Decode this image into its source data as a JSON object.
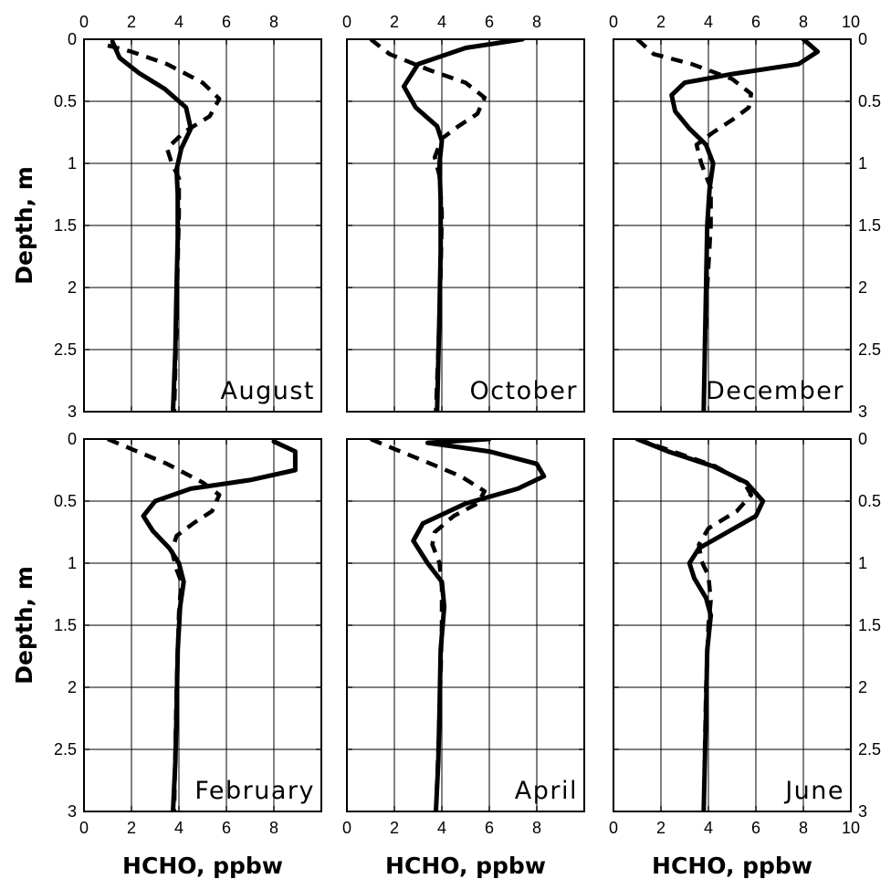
{
  "chart_data": {
    "type": "line",
    "ylabel": "Depth, m",
    "xlabel": "HCHO, ppbw",
    "ylim": [
      3,
      0
    ],
    "yticks": [
      "0",
      "0.5",
      "1",
      "1.5",
      "2",
      "2.5",
      "3"
    ],
    "grid": true,
    "panels": [
      {
        "title": "August",
        "xlim": [
          0,
          10
        ],
        "xticks": [
          "0",
          "2",
          "4",
          "6",
          "8"
        ],
        "series": [
          {
            "style": "solid",
            "points": [
              [
                1.2,
                0.02
              ],
              [
                1.5,
                0.15
              ],
              [
                2.3,
                0.27
              ],
              [
                3.4,
                0.4
              ],
              [
                4.3,
                0.55
              ],
              [
                4.5,
                0.72
              ],
              [
                4.1,
                0.88
              ],
              [
                3.9,
                1.05
              ],
              [
                3.95,
                1.25
              ],
              [
                3.95,
                1.6
              ],
              [
                3.9,
                2.0
              ],
              [
                3.85,
                2.5
              ],
              [
                3.75,
                3.0
              ]
            ]
          },
          {
            "style": "dashed",
            "points": [
              [
                1.0,
                0.05
              ],
              [
                2.0,
                0.1
              ],
              [
                3.5,
                0.2
              ],
              [
                5.0,
                0.35
              ],
              [
                5.7,
                0.48
              ],
              [
                5.3,
                0.62
              ],
              [
                4.2,
                0.75
              ],
              [
                3.5,
                0.88
              ],
              [
                3.7,
                1.0
              ],
              [
                4.0,
                1.12
              ],
              [
                4.0,
                1.4
              ],
              [
                3.95,
                1.8
              ],
              [
                3.9,
                2.3
              ],
              [
                3.8,
                3.0
              ]
            ]
          }
        ]
      },
      {
        "title": "October",
        "xlim": [
          0,
          10
        ],
        "xticks": [
          "0",
          "2",
          "4",
          "6",
          "8"
        ],
        "series": [
          {
            "style": "solid",
            "points": [
              [
                7.4,
                0.0
              ],
              [
                5.0,
                0.07
              ],
              [
                3.0,
                0.2
              ],
              [
                2.4,
                0.38
              ],
              [
                2.9,
                0.55
              ],
              [
                3.8,
                0.7
              ],
              [
                4.0,
                0.82
              ],
              [
                3.9,
                1.0
              ],
              [
                3.95,
                1.3
              ],
              [
                3.95,
                1.7
              ],
              [
                3.9,
                2.2
              ],
              [
                3.85,
                2.6
              ],
              [
                3.8,
                3.0
              ]
            ]
          },
          {
            "style": "dashed",
            "points": [
              [
                1.0,
                0.0
              ],
              [
                1.8,
                0.12
              ],
              [
                3.5,
                0.25
              ],
              [
                5.0,
                0.35
              ],
              [
                5.8,
                0.47
              ],
              [
                5.5,
                0.6
              ],
              [
                4.7,
                0.7
              ],
              [
                4.0,
                0.8
              ],
              [
                3.7,
                0.95
              ],
              [
                3.9,
                1.1
              ],
              [
                4.0,
                1.4
              ],
              [
                3.95,
                1.9
              ],
              [
                3.85,
                2.5
              ],
              [
                3.75,
                3.0
              ]
            ]
          }
        ]
      },
      {
        "title": "December",
        "xlim": [
          0,
          10
        ],
        "xticks": [
          "0",
          "2",
          "4",
          "6",
          "8",
          "10"
        ],
        "series": [
          {
            "style": "solid",
            "points": [
              [
                8.0,
                0.0
              ],
              [
                8.6,
                0.1
              ],
              [
                7.8,
                0.2
              ],
              [
                5.0,
                0.28
              ],
              [
                3.0,
                0.35
              ],
              [
                2.45,
                0.45
              ],
              [
                2.6,
                0.58
              ],
              [
                3.2,
                0.72
              ],
              [
                3.9,
                0.85
              ],
              [
                4.2,
                1.0
              ],
              [
                4.05,
                1.2
              ],
              [
                3.95,
                1.5
              ],
              [
                3.9,
                2.0
              ],
              [
                3.85,
                2.5
              ],
              [
                3.8,
                3.0
              ]
            ]
          },
          {
            "style": "dashed",
            "points": [
              [
                1.0,
                0.0
              ],
              [
                1.7,
                0.12
              ],
              [
                3.3,
                0.2
              ],
              [
                5.0,
                0.32
              ],
              [
                5.8,
                0.44
              ],
              [
                5.7,
                0.55
              ],
              [
                5.0,
                0.65
              ],
              [
                4.2,
                0.75
              ],
              [
                3.5,
                0.85
              ],
              [
                3.7,
                1.0
              ],
              [
                4.1,
                1.2
              ],
              [
                4.1,
                1.5
              ],
              [
                3.95,
                2.0
              ],
              [
                3.85,
                2.5
              ],
              [
                3.8,
                3.0
              ]
            ]
          }
        ]
      },
      {
        "title": "February",
        "xlim": [
          0,
          10
        ],
        "xticks": [
          "0",
          "2",
          "4",
          "6",
          "8"
        ],
        "series": [
          {
            "style": "solid",
            "points": [
              [
                8.0,
                0.02
              ],
              [
                8.9,
                0.1
              ],
              [
                8.9,
                0.25
              ],
              [
                7.0,
                0.33
              ],
              [
                4.5,
                0.4
              ],
              [
                3.0,
                0.5
              ],
              [
                2.5,
                0.62
              ],
              [
                2.9,
                0.74
              ],
              [
                3.6,
                0.88
              ],
              [
                4.0,
                1.0
              ],
              [
                4.2,
                1.15
              ],
              [
                4.05,
                1.35
              ],
              [
                3.95,
                1.7
              ],
              [
                3.9,
                2.2
              ],
              [
                3.85,
                2.6
              ],
              [
                3.75,
                3.0
              ]
            ]
          },
          {
            "style": "dashed",
            "points": [
              [
                1.0,
                0.0
              ],
              [
                2.0,
                0.08
              ],
              [
                3.5,
                0.2
              ],
              [
                5.0,
                0.35
              ],
              [
                5.7,
                0.45
              ],
              [
                5.4,
                0.58
              ],
              [
                4.6,
                0.68
              ],
              [
                3.9,
                0.78
              ],
              [
                3.7,
                0.9
              ],
              [
                3.9,
                1.05
              ],
              [
                4.1,
                1.15
              ],
              [
                4.0,
                1.4
              ],
              [
                3.9,
                2.0
              ],
              [
                3.8,
                3.0
              ]
            ]
          }
        ]
      },
      {
        "title": "April",
        "xlim": [
          0,
          10
        ],
        "xticks": [
          "0",
          "2",
          "4",
          "6",
          "8"
        ],
        "series": [
          {
            "style": "solid",
            "points": [
              [
                6.0,
                0.0
              ],
              [
                3.4,
                0.03
              ],
              [
                6.0,
                0.1
              ],
              [
                8.0,
                0.2
              ],
              [
                8.3,
                0.3
              ],
              [
                7.2,
                0.4
              ],
              [
                5.0,
                0.52
              ],
              [
                3.2,
                0.68
              ],
              [
                2.8,
                0.82
              ],
              [
                3.4,
                1.0
              ],
              [
                4.0,
                1.15
              ],
              [
                4.1,
                1.35
              ],
              [
                3.95,
                1.7
              ],
              [
                3.9,
                2.2
              ],
              [
                3.85,
                2.6
              ],
              [
                3.75,
                3.0
              ]
            ]
          },
          {
            "style": "dashed",
            "points": [
              [
                1.0,
                0.0
              ],
              [
                2.0,
                0.08
              ],
              [
                3.3,
                0.18
              ],
              [
                4.8,
                0.3
              ],
              [
                5.8,
                0.42
              ],
              [
                5.5,
                0.52
              ],
              [
                4.5,
                0.62
              ],
              [
                3.7,
                0.75
              ],
              [
                3.6,
                0.85
              ],
              [
                3.9,
                1.0
              ],
              [
                4.0,
                1.2
              ],
              [
                4.0,
                1.5
              ],
              [
                3.95,
                1.9
              ],
              [
                3.85,
                2.5
              ],
              [
                3.75,
                3.0
              ]
            ]
          }
        ]
      },
      {
        "title": "June",
        "xlim": [
          0,
          10
        ],
        "xticks": [
          "0",
          "2",
          "4",
          "6",
          "8",
          "10"
        ],
        "series": [
          {
            "style": "solid",
            "points": [
              [
                1.0,
                0.0
              ],
              [
                2.3,
                0.1
              ],
              [
                4.2,
                0.22
              ],
              [
                5.6,
                0.35
              ],
              [
                6.3,
                0.5
              ],
              [
                6.0,
                0.62
              ],
              [
                4.8,
                0.75
              ],
              [
                3.6,
                0.88
              ],
              [
                3.2,
                1.0
              ],
              [
                3.4,
                1.12
              ],
              [
                3.9,
                1.28
              ],
              [
                4.1,
                1.42
              ],
              [
                3.95,
                1.7
              ],
              [
                3.9,
                2.2
              ],
              [
                3.85,
                2.6
              ],
              [
                3.8,
                3.0
              ]
            ]
          },
          {
            "style": "dashed",
            "points": [
              [
                1.0,
                0.0
              ],
              [
                2.5,
                0.1
              ],
              [
                4.3,
                0.22
              ],
              [
                5.5,
                0.35
              ],
              [
                5.8,
                0.45
              ],
              [
                5.2,
                0.58
              ],
              [
                4.0,
                0.72
              ],
              [
                3.6,
                0.85
              ],
              [
                3.7,
                0.98
              ],
              [
                4.0,
                1.1
              ],
              [
                4.1,
                1.3
              ],
              [
                4.0,
                1.5
              ],
              [
                3.9,
                2.0
              ],
              [
                3.85,
                2.5
              ],
              [
                3.8,
                3.0
              ]
            ]
          }
        ]
      }
    ]
  }
}
